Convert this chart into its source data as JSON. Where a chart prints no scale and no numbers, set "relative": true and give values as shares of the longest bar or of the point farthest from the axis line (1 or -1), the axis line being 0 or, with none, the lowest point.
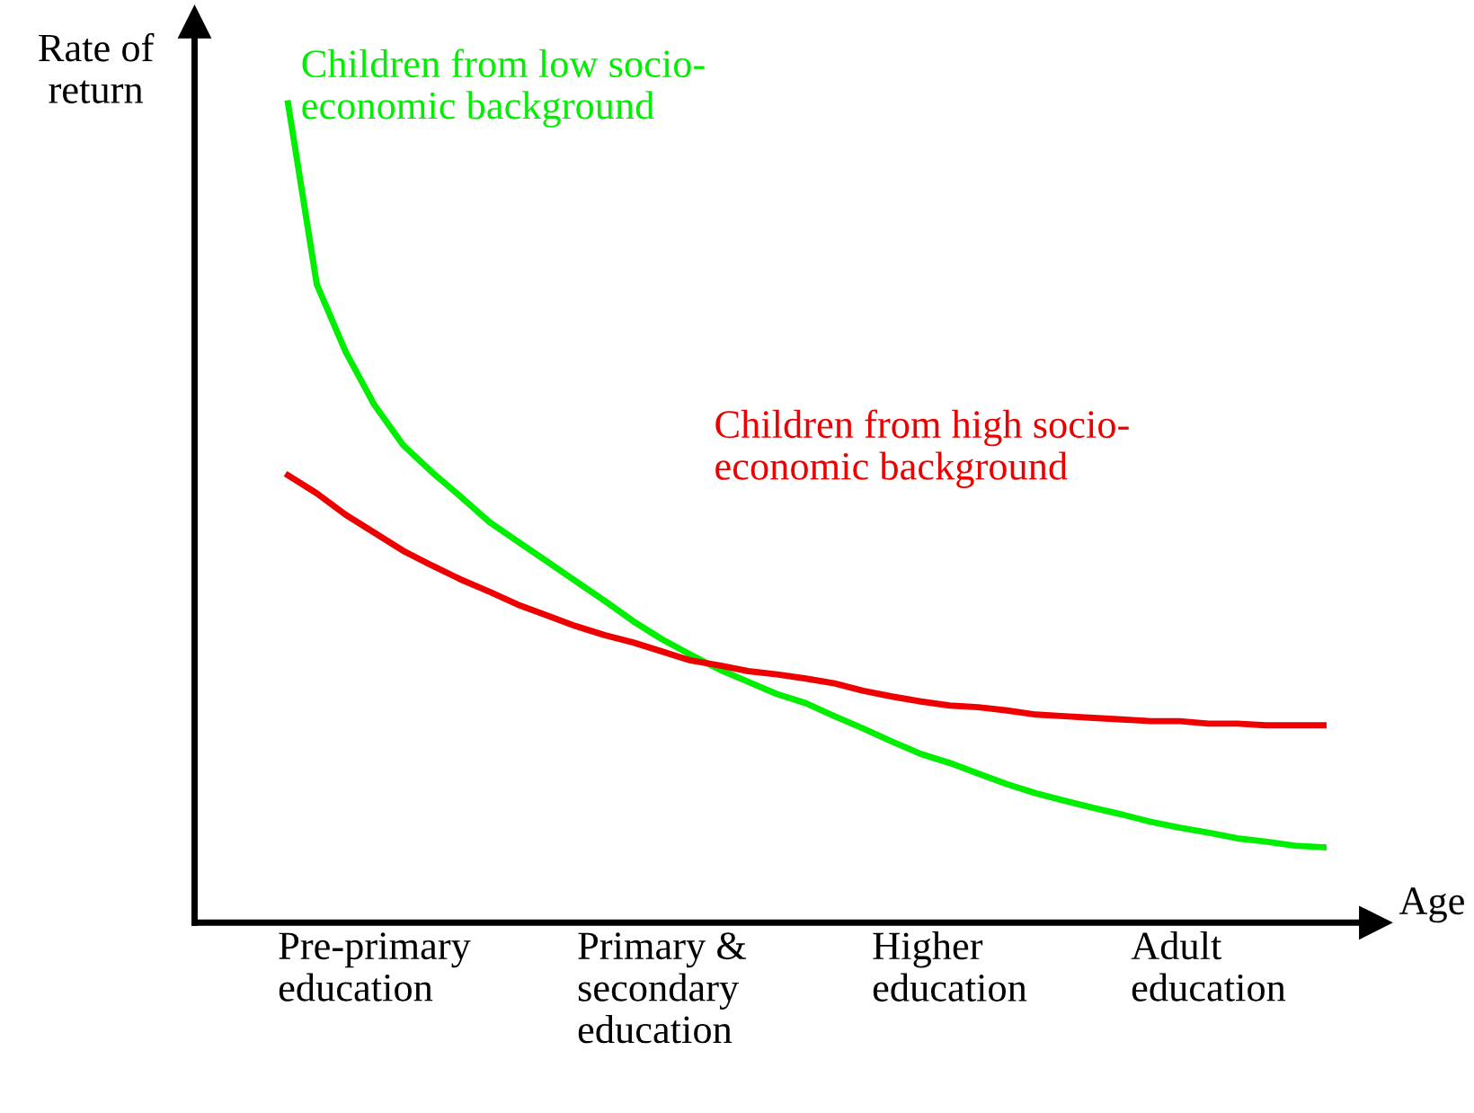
{
  "chart_data": {
    "type": "line",
    "relative": true,
    "xlabel": "Age",
    "ylabel": "Rate of return",
    "categories": [
      null,
      null,
      null,
      "Pre-primary\neducation",
      null,
      null,
      null,
      null,
      null,
      null,
      null,
      null,
      null,
      "Primary &\nsecondary\neducation",
      null,
      null,
      null,
      null,
      null,
      null,
      null,
      null,
      null,
      "Higher\neducation",
      null,
      null,
      null,
      null,
      null,
      null,
      null,
      null,
      "Adult\neducation",
      null,
      null,
      null,
      null
    ],
    "grid": false,
    "legend": false,
    "marker": "none",
    "line_style": "solid",
    "series": [
      {
        "name": "Children from low socio-\neconomic background",
        "color": "#00ee00",
        "values": [
          1.0,
          0.779,
          0.697,
          0.632,
          0.583,
          0.55,
          0.52,
          0.489,
          0.465,
          0.441,
          0.417,
          0.393,
          0.368,
          0.346,
          0.327,
          0.309,
          0.294,
          0.279,
          0.268,
          0.252,
          0.237,
          0.221,
          0.206,
          0.195,
          0.182,
          0.169,
          0.158,
          0.149,
          0.14,
          0.132,
          0.123,
          0.116,
          0.11,
          0.103,
          0.099,
          0.094,
          0.092
        ]
      },
      {
        "name": "Children from high socio-\neconomic background",
        "color": "#ee0000",
        "values": [
          0.546,
          0.524,
          0.498,
          0.476,
          0.454,
          0.436,
          0.419,
          0.404,
          0.388,
          0.375,
          0.362,
          0.351,
          0.342,
          0.331,
          0.32,
          0.314,
          0.307,
          0.303,
          0.298,
          0.292,
          0.283,
          0.276,
          0.27,
          0.265,
          0.263,
          0.259,
          0.254,
          0.252,
          0.25,
          0.248,
          0.246,
          0.246,
          0.243,
          0.243,
          0.241,
          0.241,
          0.241
        ]
      }
    ]
  }
}
